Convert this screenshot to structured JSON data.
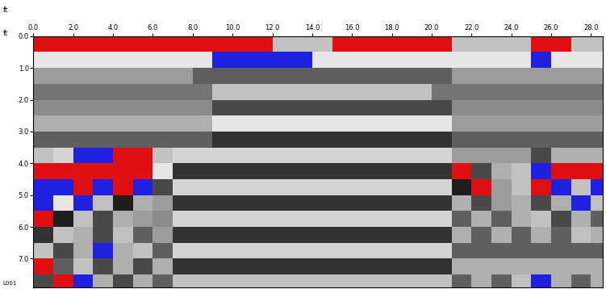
{
  "chart_data": {
    "type": "heatmap",
    "x_label": "ft",
    "y_label": "ft",
    "annotation": "L001",
    "xlim": [
      0,
      28.6
    ],
    "ylim": [
      7.9,
      0
    ],
    "xticks": [
      {
        "value": 0,
        "label": "0.0"
      },
      {
        "value": 2,
        "label": "2.0"
      },
      {
        "value": 4,
        "label": "4.0"
      },
      {
        "value": 6,
        "label": "6.0"
      },
      {
        "value": 8,
        "label": "8.0"
      },
      {
        "value": 10,
        "label": "10.0"
      },
      {
        "value": 12,
        "label": "12.0"
      },
      {
        "value": 14,
        "label": "14.0"
      },
      {
        "value": 16,
        "label": "16.0"
      },
      {
        "value": 18,
        "label": "18.0"
      },
      {
        "value": 20,
        "label": "20.0"
      },
      {
        "value": 22,
        "label": "22.0"
      },
      {
        "value": 24,
        "label": "24.0"
      },
      {
        "value": 26,
        "label": "26.0"
      },
      {
        "value": 28,
        "label": "28.0"
      }
    ],
    "yticks": [
      {
        "value": 0,
        "label": "0.0"
      },
      {
        "value": 1,
        "label": "1.0"
      },
      {
        "value": 2,
        "label": "2.0"
      },
      {
        "value": 3,
        "label": "3.0"
      },
      {
        "value": 4,
        "label": "4.0"
      },
      {
        "value": 5,
        "label": "5.0"
      },
      {
        "value": 6,
        "label": "6.0"
      },
      {
        "value": 7,
        "label": "7.0"
      }
    ],
    "grid": false,
    "zlim": [
      -1,
      1
    ],
    "x_edges": [
      0,
      1,
      2,
      3,
      4,
      5,
      6,
      7,
      8,
      9,
      10,
      11,
      12,
      13,
      14,
      15,
      16,
      17,
      18,
      19,
      20,
      21,
      22,
      23,
      24,
      25,
      26,
      27,
      28,
      29
    ],
    "y_edges": [
      0,
      0.5,
      1,
      1.5,
      2,
      2.5,
      3,
      3.5,
      4,
      4.5,
      5,
      5.5,
      6,
      6.5,
      7,
      7.5,
      8
    ],
    "cells": [
      [
        0.9,
        0.9,
        0.9,
        0.9,
        0.9,
        0.9,
        0.9,
        0.9,
        0.9,
        0.9,
        0.9,
        0.9,
        0.3,
        0.3,
        0.3,
        0.9,
        0.9,
        0.9,
        0.9,
        0.9,
        0.9,
        0.3,
        0.3,
        0.3,
        0.3,
        0.9,
        0.9,
        0.3,
        0.3
      ],
      [
        0.5,
        0.5,
        0.5,
        0.5,
        0.5,
        0.5,
        0.5,
        0.5,
        0.5,
        -0.9,
        -0.9,
        -0.9,
        -0.9,
        -0.9,
        0.5,
        0.5,
        0.5,
        0.5,
        0.5,
        0.5,
        0.5,
        0.5,
        0.5,
        0.5,
        0.5,
        -0.8,
        0.5,
        0.5,
        0.5
      ],
      [
        0.1,
        0.1,
        0.1,
        0.1,
        0.1,
        0.1,
        0.1,
        0.1,
        -0.2,
        -0.2,
        -0.2,
        -0.2,
        -0.2,
        -0.2,
        -0.2,
        -0.2,
        -0.2,
        -0.2,
        -0.2,
        -0.2,
        -0.2,
        0.1,
        0.1,
        0.1,
        0.1,
        0.1,
        0.1,
        0.1,
        0.1
      ],
      [
        -0.1,
        -0.1,
        -0.1,
        -0.1,
        -0.1,
        -0.1,
        -0.1,
        -0.1,
        -0.1,
        0.3,
        0.3,
        0.3,
        0.3,
        0.3,
        0.3,
        0.3,
        0.3,
        0.3,
        0.3,
        0.3,
        -0.1,
        -0.1,
        -0.1,
        -0.1,
        -0.1,
        -0.1,
        -0.1,
        -0.1,
        -0.1
      ],
      [
        0.0,
        0.0,
        0.0,
        0.0,
        0.0,
        0.0,
        0.0,
        0.0,
        0.0,
        -0.3,
        -0.3,
        -0.3,
        -0.3,
        -0.3,
        -0.3,
        -0.3,
        -0.3,
        -0.3,
        -0.3,
        -0.3,
        -0.3,
        0.0,
        0.0,
        0.0,
        0.0,
        0.0,
        0.0,
        0.0,
        0.0
      ],
      [
        0.2,
        0.2,
        0.2,
        0.2,
        0.2,
        0.2,
        0.2,
        0.2,
        0.2,
        0.5,
        0.5,
        0.5,
        0.5,
        0.5,
        0.5,
        0.5,
        0.5,
        0.5,
        0.5,
        0.5,
        0.5,
        0.1,
        0.1,
        0.1,
        0.1,
        0.1,
        0.1,
        0.1,
        0.1
      ],
      [
        -0.2,
        -0.2,
        -0.2,
        -0.2,
        -0.2,
        -0.2,
        -0.2,
        -0.2,
        -0.2,
        -0.4,
        -0.4,
        -0.4,
        -0.4,
        -0.4,
        -0.4,
        -0.4,
        -0.4,
        -0.4,
        -0.4,
        -0.4,
        -0.4,
        -0.2,
        -0.2,
        -0.2,
        -0.2,
        -0.2,
        -0.2,
        -0.2,
        -0.2
      ],
      [
        0.3,
        0.4,
        -0.8,
        -0.8,
        0.9,
        0.9,
        0.3,
        0.4,
        0.4,
        0.4,
        0.4,
        0.4,
        0.4,
        0.4,
        0.4,
        0.4,
        0.4,
        0.4,
        0.4,
        0.4,
        0.4,
        0.1,
        0.1,
        0.1,
        0.1,
        -0.3,
        0.2,
        0.2,
        0.2
      ],
      [
        0.95,
        0.95,
        0.95,
        0.95,
        0.95,
        0.95,
        0.5,
        -0.4,
        -0.4,
        -0.4,
        -0.4,
        -0.4,
        -0.4,
        -0.4,
        -0.4,
        -0.4,
        -0.4,
        -0.4,
        -0.4,
        -0.4,
        -0.4,
        0.85,
        -0.3,
        0.2,
        0.3,
        -0.9,
        0.85,
        0.9,
        0.9
      ],
      [
        -0.95,
        -0.95,
        0.9,
        -0.95,
        0.9,
        -0.8,
        -0.3,
        0.4,
        0.4,
        0.4,
        0.4,
        0.4,
        0.4,
        0.4,
        0.4,
        0.4,
        0.4,
        0.4,
        0.4,
        0.4,
        0.4,
        -0.5,
        0.85,
        0.1,
        0.3,
        0.9,
        -0.8,
        0.3,
        -0.85
      ],
      [
        -0.85,
        0.5,
        -0.9,
        0.3,
        -0.5,
        0.2,
        0.1,
        -0.4,
        -0.4,
        -0.4,
        -0.4,
        -0.4,
        -0.4,
        -0.4,
        -0.4,
        -0.4,
        -0.4,
        -0.4,
        -0.4,
        -0.4,
        -0.4,
        0.2,
        -0.3,
        0.1,
        0.2,
        -0.3,
        0.2,
        -0.8,
        0.3
      ],
      [
        0.9,
        -0.5,
        0.3,
        -0.3,
        0.2,
        0.1,
        0.0,
        0.4,
        0.4,
        0.4,
        0.4,
        0.4,
        0.4,
        0.4,
        0.4,
        0.4,
        0.4,
        0.4,
        0.4,
        0.4,
        0.4,
        -0.2,
        0.2,
        -0.2,
        0.2,
        0.3,
        -0.3,
        0.2,
        -0.2
      ],
      [
        -0.4,
        0.3,
        0.2,
        -0.3,
        0.3,
        -0.2,
        0.1,
        -0.4,
        -0.4,
        -0.4,
        -0.4,
        -0.4,
        -0.4,
        -0.4,
        -0.4,
        -0.4,
        -0.4,
        -0.4,
        -0.4,
        -0.4,
        -0.4,
        0.2,
        -0.2,
        0.2,
        -0.2,
        0.2,
        -0.2,
        0.3,
        0.2
      ],
      [
        0.3,
        -0.3,
        0.2,
        -0.85,
        0.2,
        0.3,
        -0.2,
        0.4,
        0.4,
        0.4,
        0.4,
        0.4,
        0.4,
        0.4,
        0.4,
        0.4,
        0.4,
        0.4,
        0.4,
        0.4,
        0.4,
        -0.2,
        -0.2,
        -0.2,
        -0.2,
        -0.2,
        -0.2,
        -0.2,
        -0.2
      ],
      [
        0.9,
        -0.2,
        0.3,
        -0.3,
        0.2,
        -0.3,
        0.2,
        -0.4,
        -0.4,
        -0.4,
        -0.4,
        -0.4,
        -0.4,
        -0.4,
        -0.4,
        -0.4,
        -0.4,
        -0.4,
        -0.4,
        -0.4,
        -0.4,
        0.2,
        0.2,
        0.2,
        0.2,
        0.2,
        0.2,
        0.2,
        0.2
      ],
      [
        -0.3,
        0.9,
        -0.8,
        0.2,
        -0.3,
        0.2,
        -0.2,
        0.3,
        0.3,
        0.3,
        0.3,
        0.3,
        0.3,
        0.3,
        0.3,
        0.3,
        0.3,
        0.3,
        0.3,
        0.3,
        0.3,
        -0.2,
        0.2,
        -0.2,
        0.3,
        -0.8,
        0.2,
        -0.2,
        0.2
      ]
    ]
  }
}
